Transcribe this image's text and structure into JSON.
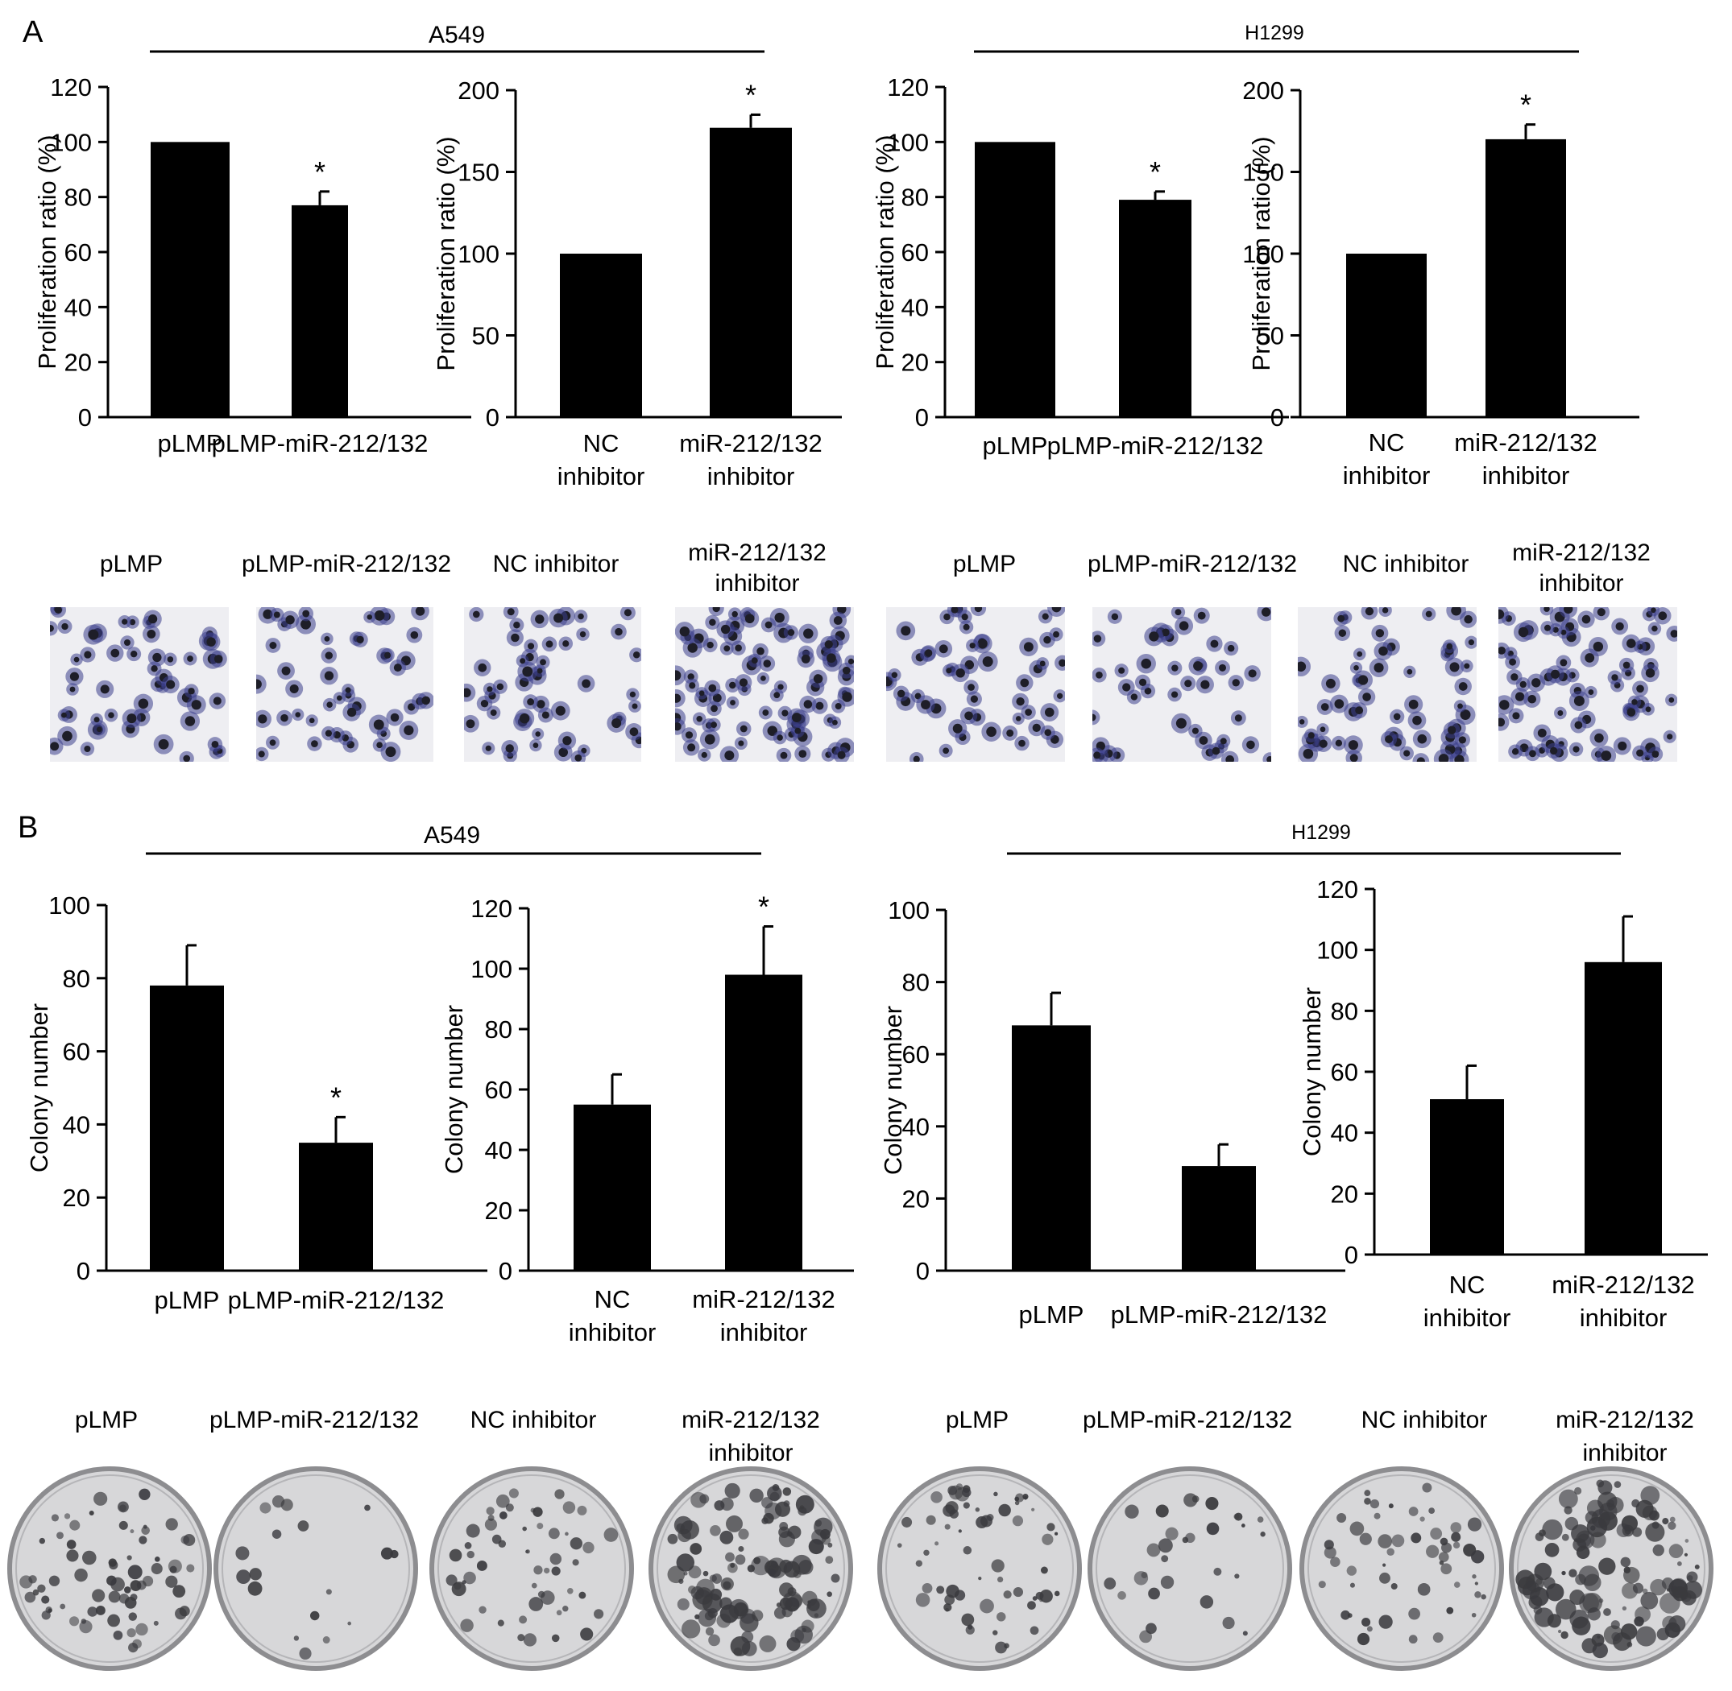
{
  "panels": {
    "A": {
      "letter": "A",
      "groups": [
        {
          "cell_line": "A549",
          "thumbs": [
            "pLMP",
            "pLMP-miR-212/132",
            "NC inhibitor",
            "miR-212/132\ninhibitor"
          ]
        },
        {
          "cell_line": "H1299",
          "thumbs": [
            "pLMP",
            "pLMP-miR-212/132",
            "NC inhibitor",
            "miR-212/132\ninhibitor"
          ]
        }
      ]
    },
    "B": {
      "letter": "B",
      "groups": [
        {
          "cell_line": "A549",
          "thumbs": [
            "pLMP",
            "pLMP-miR-212/132",
            "NC inhibitor",
            "miR-212/132\ninhibitor"
          ]
        },
        {
          "cell_line": "H1299",
          "thumbs": [
            "pLMP",
            "pLMP-miR-212/132",
            "NC inhibitor",
            "miR-212/132\ninhibitor"
          ]
        }
      ]
    }
  },
  "colors": {
    "bar": "#000000",
    "axis": "#000000",
    "cell_bg": "#eeeef2",
    "cell_stain": "#3c3f8c",
    "cell_dark": "#1e1e28",
    "dish_bg": "#d7d7d9",
    "colony": "#3a3a3e",
    "dish_rim": "#8d8d90"
  },
  "chart_data": [
    {
      "id": "A-A549-1",
      "type": "bar",
      "ylabel": "Proliferation ratio (%)",
      "ylim": [
        0,
        120
      ],
      "yticks": [
        0,
        20,
        40,
        60,
        80,
        100,
        120
      ],
      "categories": [
        "pLMP",
        "pLMP-miR-212/132"
      ],
      "values": [
        100,
        77
      ],
      "errors": [
        0,
        5
      ],
      "sig": [
        "",
        "*"
      ]
    },
    {
      "id": "A-A549-2",
      "type": "bar",
      "ylabel": "Proliferation ratio (%)",
      "ylim": [
        0,
        200
      ],
      "yticks": [
        0,
        50,
        100,
        150,
        200
      ],
      "categories": [
        "NC\ninhibitor",
        "miR-212/132\ninhibitor"
      ],
      "values": [
        100,
        177
      ],
      "errors": [
        0,
        8
      ],
      "sig": [
        "",
        "*"
      ]
    },
    {
      "id": "A-H1299-1",
      "type": "bar",
      "ylabel": "Proliferation ratio (%)",
      "ylim": [
        0,
        120
      ],
      "yticks": [
        0,
        20,
        40,
        60,
        80,
        100,
        120
      ],
      "categories": [
        "pLMP",
        "pLMP-miR-212/132"
      ],
      "values": [
        100,
        79
      ],
      "errors": [
        0,
        3
      ],
      "sig": [
        "",
        "*"
      ]
    },
    {
      "id": "A-H1299-2",
      "type": "bar",
      "ylabel": "Proliferation ratio (%)",
      "ylim": [
        0,
        200
      ],
      "yticks": [
        0,
        50,
        100,
        150,
        200
      ],
      "categories": [
        "NC\ninhibitor",
        "miR-212/132\ninhibitor"
      ],
      "values": [
        100,
        170
      ],
      "errors": [
        0,
        9
      ],
      "sig": [
        "",
        "*"
      ]
    },
    {
      "id": "B-A549-1",
      "type": "bar",
      "ylabel": "Colony number",
      "ylim": [
        0,
        100
      ],
      "yticks": [
        0,
        20,
        40,
        60,
        80,
        100
      ],
      "categories": [
        "pLMP",
        "pLMP-miR-212/132"
      ],
      "values": [
        78,
        35
      ],
      "errors": [
        11,
        7
      ],
      "sig": [
        "",
        "*"
      ]
    },
    {
      "id": "B-A549-2",
      "type": "bar",
      "ylabel": "Colony number",
      "ylim": [
        0,
        120
      ],
      "yticks": [
        0,
        20,
        40,
        60,
        80,
        100,
        120
      ],
      "categories": [
        "NC\ninhibitor",
        "miR-212/132\ninhibitor"
      ],
      "values": [
        55,
        98
      ],
      "errors": [
        10,
        16
      ],
      "sig": [
        "",
        "*"
      ]
    },
    {
      "id": "B-H1299-1",
      "type": "bar",
      "ylabel": "Colony number",
      "ylim": [
        0,
        100
      ],
      "yticks": [
        0,
        20,
        40,
        60,
        80,
        100
      ],
      "categories": [
        "pLMP",
        "pLMP-miR-212/132"
      ],
      "values": [
        68,
        29
      ],
      "errors": [
        9,
        6
      ],
      "sig": [
        "",
        ""
      ]
    },
    {
      "id": "B-H1299-2",
      "type": "bar",
      "ylabel": "Colony number",
      "ylim": [
        0,
        120
      ],
      "yticks": [
        0,
        20,
        40,
        60,
        80,
        100,
        120
      ],
      "categories": [
        "NC\ninhibitor",
        "miR-212/132\ninhibitor"
      ],
      "values": [
        51,
        96
      ],
      "errors": [
        11,
        15
      ],
      "sig": [
        "",
        ""
      ]
    }
  ]
}
